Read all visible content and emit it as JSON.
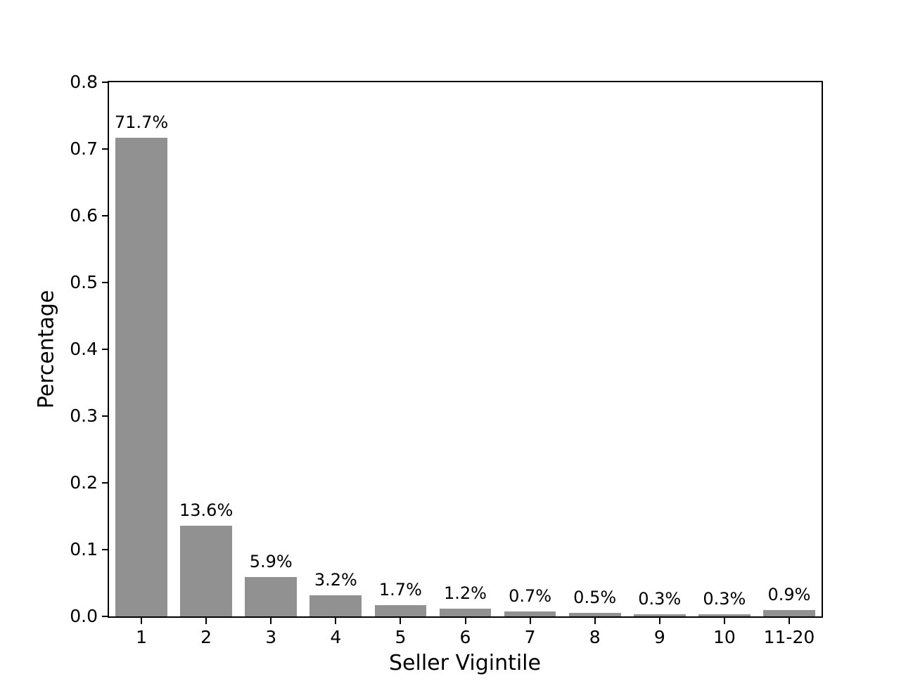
{
  "figure": {
    "background": "#ffffff",
    "text_color": "#000000"
  },
  "chart_data": {
    "type": "bar",
    "title": "",
    "xlabel": "Seller Vigintile",
    "ylabel": "Percentage",
    "categories": [
      "1",
      "2",
      "3",
      "4",
      "5",
      "6",
      "7",
      "8",
      "9",
      "10",
      "11-20"
    ],
    "values": [
      0.717,
      0.136,
      0.059,
      0.032,
      0.017,
      0.012,
      0.007,
      0.005,
      0.003,
      0.003,
      0.009
    ],
    "value_labels": [
      "71.7%",
      "13.6%",
      "5.9%",
      "3.2%",
      "1.7%",
      "1.2%",
      "0.7%",
      "0.5%",
      "0.3%",
      "0.3%",
      "0.9%"
    ],
    "ylim": [
      0,
      0.8
    ],
    "ytick_labels": [
      "0.0",
      "0.1",
      "0.2",
      "0.3",
      "0.4",
      "0.5",
      "0.6",
      "0.7",
      "0.8"
    ],
    "bar_color": "#919191",
    "bar_width_fraction": 0.8,
    "grid": false,
    "legend": false
  }
}
